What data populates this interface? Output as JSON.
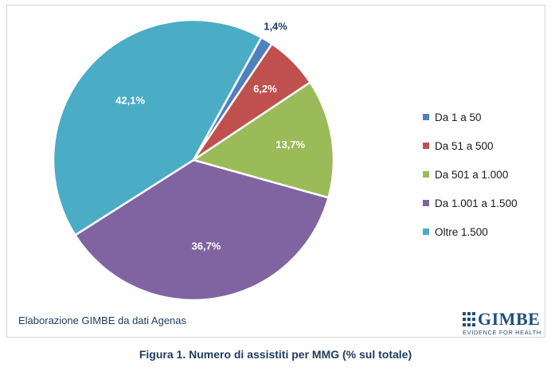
{
  "chart_data": {
    "type": "pie",
    "categories": [
      "Da 1 a 50",
      "Da 51 a 500",
      "Da 501 a 1.000",
      "Da 1.001 a 1.500",
      "Oltre 1.500"
    ],
    "values": [
      1.4,
      6.2,
      13.7,
      36.7,
      42.1
    ],
    "value_labels": [
      "1,4%",
      "6,2%",
      "13,7%",
      "36,7%",
      "42,1%"
    ],
    "colors": [
      "#4f81bd",
      "#c0504d",
      "#9bbb59",
      "#8064a2",
      "#4bacc6"
    ],
    "label_colors": [
      "#1f3a5f",
      "#ffffff",
      "#ffffff",
      "#ffffff",
      "#ffffff"
    ],
    "start_angle_deg": 29,
    "direction": "clockwise",
    "legend_position": "right",
    "title": "",
    "xlabel": "",
    "ylabel": ""
  },
  "source_note": "Elaborazione GIMBE da dati Agenas",
  "logo": {
    "wordmark": "GIMBE",
    "tagline": "EVIDENCE FOR HEALTH",
    "color": "#1f4e79"
  },
  "caption": "Figura 1. Numero di assistiti per MMG (% sul totale)"
}
